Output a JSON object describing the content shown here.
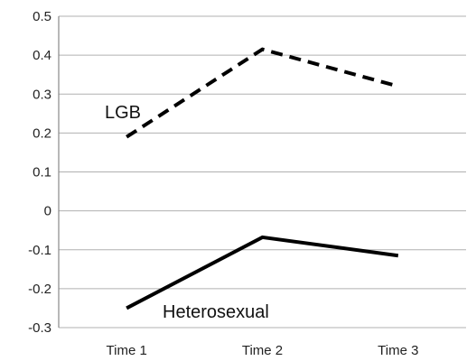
{
  "chart_data": {
    "type": "line",
    "title": "",
    "xlabel": "",
    "ylabel": "",
    "categories": [
      "Time 1",
      "Time 2",
      "Time 3"
    ],
    "ylim": [
      -0.3,
      0.5
    ],
    "yticks": [
      "0.5",
      "0.4",
      "0.3",
      "0.2",
      "0.1",
      "0",
      "-0.1",
      "-0.2",
      "-0.3"
    ],
    "grid": true,
    "legend": "none",
    "series": [
      {
        "name": "LGB",
        "values": [
          0.19,
          0.415,
          0.32
        ],
        "line_style": "dashed",
        "color": "#000000"
      },
      {
        "name": "Heterosexual",
        "values": [
          -0.25,
          -0.068,
          -0.115
        ],
        "line_style": "solid",
        "color": "#000000"
      }
    ]
  }
}
